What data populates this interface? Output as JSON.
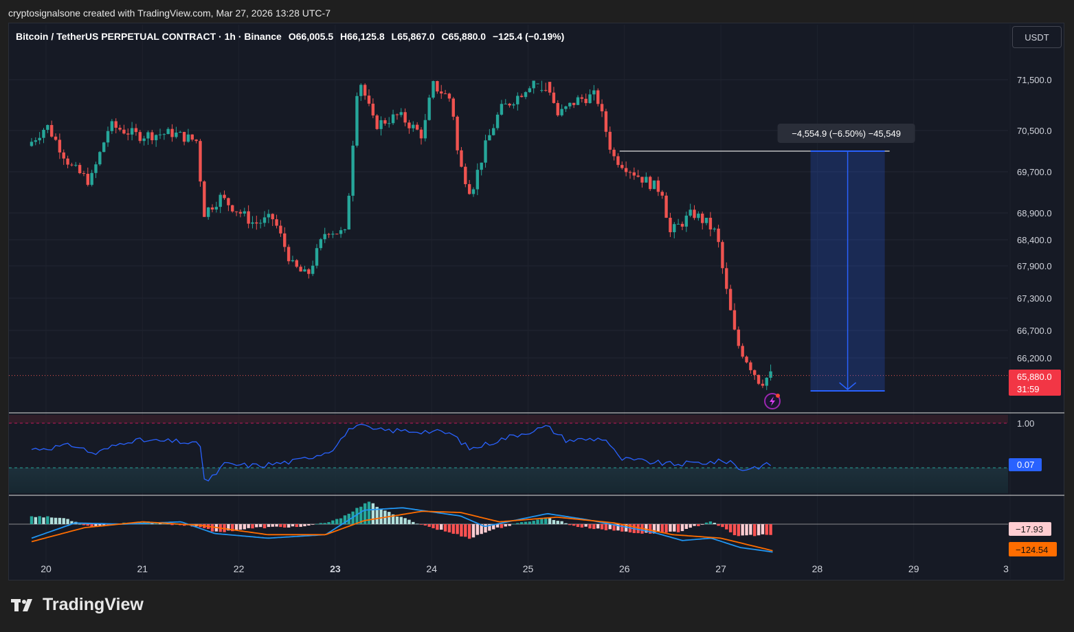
{
  "attribution": "cryptosignalsone created with TradingView.com, Mar 27, 2026 13:28 UTC-7",
  "legend": {
    "symbol": "Bitcoin / TetherUS PERPETUAL CONTRACT · 1h · Binance",
    "open": "O66,005.5",
    "high": "H66,125.8",
    "low": "L65,867.0",
    "close": "C65,880.0",
    "change": "−125.4 (−0.19%)"
  },
  "currency_button": "USDT",
  "brand": "TradingView",
  "colors": {
    "up": "#26a69a",
    "down": "#ef5350",
    "rsi": "#2962ff",
    "macd_signal": "#ff6d00",
    "accent": "#2962ff"
  },
  "chart_data": [
    {
      "type": "candlestick",
      "title": "Bitcoin / TetherUS PERPETUAL CONTRACT · 1h · Binance",
      "x_tick_labels": [
        "20",
        "21",
        "22",
        "23",
        "24",
        "25",
        "26",
        "27",
        "28",
        "29",
        "3"
      ],
      "y_tick_labels": [
        "71,500.0",
        "70,500.0",
        "69,700.0",
        "68,900.0",
        "68,400.0",
        "67,900.0",
        "67,300.0",
        "66,700.0",
        "66,200.0"
      ],
      "ylim": [
        65300,
        72000
      ],
      "last_price": "65,880.0",
      "countdown": "31:59",
      "price_path_keypoints": [
        {
          "day": 19.85,
          "price": 70200
        },
        {
          "day": 20.05,
          "price": 70600
        },
        {
          "day": 20.3,
          "price": 69800
        },
        {
          "day": 20.5,
          "price": 69500
        },
        {
          "day": 20.7,
          "price": 70600
        },
        {
          "day": 21.0,
          "price": 70400
        },
        {
          "day": 21.35,
          "price": 70450
        },
        {
          "day": 21.6,
          "price": 70300
        },
        {
          "day": 21.68,
          "price": 68900
        },
        {
          "day": 21.85,
          "price": 69200
        },
        {
          "day": 22.2,
          "price": 68700
        },
        {
          "day": 22.4,
          "price": 68800
        },
        {
          "day": 22.6,
          "price": 67900
        },
        {
          "day": 22.75,
          "price": 67700
        },
        {
          "day": 22.95,
          "price": 68600
        },
        {
          "day": 23.15,
          "price": 68500
        },
        {
          "day": 23.28,
          "price": 71600
        },
        {
          "day": 23.45,
          "price": 70600
        },
        {
          "day": 23.7,
          "price": 70800
        },
        {
          "day": 23.95,
          "price": 70400
        },
        {
          "day": 24.05,
          "price": 71400
        },
        {
          "day": 24.25,
          "price": 71100
        },
        {
          "day": 24.32,
          "price": 69900
        },
        {
          "day": 24.45,
          "price": 69300
        },
        {
          "day": 24.6,
          "price": 70200
        },
        {
          "day": 24.75,
          "price": 70900
        },
        {
          "day": 24.95,
          "price": 71200
        },
        {
          "day": 25.2,
          "price": 71700
        },
        {
          "day": 25.35,
          "price": 70800
        },
        {
          "day": 25.55,
          "price": 71100
        },
        {
          "day": 25.75,
          "price": 71200
        },
        {
          "day": 25.92,
          "price": 70000
        },
        {
          "day": 26.2,
          "price": 69600
        },
        {
          "day": 26.45,
          "price": 69300
        },
        {
          "day": 26.5,
          "price": 68500
        },
        {
          "day": 26.75,
          "price": 68900
        },
        {
          "day": 26.9,
          "price": 68700
        },
        {
          "day": 27.0,
          "price": 68500
        },
        {
          "day": 27.08,
          "price": 67600
        },
        {
          "day": 27.2,
          "price": 66500
        },
        {
          "day": 27.45,
          "price": 65750
        },
        {
          "day": 27.55,
          "price": 65880
        }
      ],
      "measure_annotation": {
        "label": "−4,554.9 (−6.50%) −45,549",
        "from_price": 70100,
        "to_price": 65600,
        "from_day": 27.93,
        "to_day": 28.7
      },
      "reference_line_price": 70100
    },
    {
      "type": "line",
      "series": [
        {
          "name": "",
          "value_label": "0.07"
        }
      ],
      "y_tick_labels": [
        "1.00"
      ],
      "rsi_path_keypoints": [
        {
          "day": 19.85,
          "v": 0.62
        },
        {
          "day": 20.3,
          "v": 0.68
        },
        {
          "day": 20.5,
          "v": 0.55
        },
        {
          "day": 20.85,
          "v": 0.75
        },
        {
          "day": 21.4,
          "v": 0.73
        },
        {
          "day": 21.6,
          "v": 0.68
        },
        {
          "day": 21.65,
          "v": 0.1
        },
        {
          "day": 21.85,
          "v": 0.4
        },
        {
          "day": 22.2,
          "v": 0.38
        },
        {
          "day": 22.6,
          "v": 0.45
        },
        {
          "day": 22.95,
          "v": 0.6
        },
        {
          "day": 23.2,
          "v": 0.98
        },
        {
          "day": 23.4,
          "v": 0.9
        },
        {
          "day": 24.0,
          "v": 0.88
        },
        {
          "day": 24.2,
          "v": 0.85
        },
        {
          "day": 24.4,
          "v": 0.62
        },
        {
          "day": 24.8,
          "v": 0.8
        },
        {
          "day": 25.2,
          "v": 0.95
        },
        {
          "day": 25.4,
          "v": 0.75
        },
        {
          "day": 25.8,
          "v": 0.78
        },
        {
          "day": 25.95,
          "v": 0.48
        },
        {
          "day": 26.5,
          "v": 0.4
        },
        {
          "day": 27.1,
          "v": 0.45
        },
        {
          "day": 27.2,
          "v": 0.32
        },
        {
          "day": 27.55,
          "v": 0.41
        }
      ]
    },
    {
      "type": "bar",
      "series": [
        {
          "name": "",
          "value_label": "−17.93"
        },
        {
          "name": "",
          "value_label": "−124.54"
        }
      ],
      "y_tick_labels": [],
      "histogram_keypoints": [
        {
          "day": 19.85,
          "v": 0.7
        },
        {
          "day": 20.2,
          "v": 0.5
        },
        {
          "day": 20.45,
          "v": -0.2
        },
        {
          "day": 21.0,
          "v": 0.2
        },
        {
          "day": 21.6,
          "v": -0.2
        },
        {
          "day": 21.75,
          "v": -0.7
        },
        {
          "day": 22.2,
          "v": -0.3
        },
        {
          "day": 22.7,
          "v": -0.2
        },
        {
          "day": 23.0,
          "v": 0.3
        },
        {
          "day": 23.35,
          "v": 1.9
        },
        {
          "day": 23.6,
          "v": 0.8
        },
        {
          "day": 24.0,
          "v": -0.3
        },
        {
          "day": 24.4,
          "v": -1.2
        },
        {
          "day": 24.65,
          "v": -0.4
        },
        {
          "day": 25.2,
          "v": 0.6
        },
        {
          "day": 25.5,
          "v": -0.2
        },
        {
          "day": 26.2,
          "v": -0.8
        },
        {
          "day": 26.6,
          "v": -0.6
        },
        {
          "day": 26.9,
          "v": 0.3
        },
        {
          "day": 27.15,
          "v": -1.0
        },
        {
          "day": 27.55,
          "v": -0.9
        }
      ],
      "macd_keypoints": [
        {
          "day": 19.85,
          "v": -1.2
        },
        {
          "day": 20.3,
          "v": 0.1
        },
        {
          "day": 20.8,
          "v": 0.0
        },
        {
          "day": 21.4,
          "v": 0.2
        },
        {
          "day": 21.75,
          "v": -0.8
        },
        {
          "day": 22.3,
          "v": -1.2
        },
        {
          "day": 22.9,
          "v": -0.9
        },
        {
          "day": 23.3,
          "v": 1.2
        },
        {
          "day": 23.7,
          "v": 1.4
        },
        {
          "day": 24.3,
          "v": 0.7
        },
        {
          "day": 24.55,
          "v": -0.2
        },
        {
          "day": 25.2,
          "v": 0.9
        },
        {
          "day": 25.6,
          "v": 0.4
        },
        {
          "day": 26.3,
          "v": -0.7
        },
        {
          "day": 26.6,
          "v": -1.4
        },
        {
          "day": 26.9,
          "v": -1.2
        },
        {
          "day": 27.2,
          "v": -2.0
        },
        {
          "day": 27.55,
          "v": -2.4
        }
      ],
      "signal_keypoints": [
        {
          "day": 19.85,
          "v": -1.5
        },
        {
          "day": 20.4,
          "v": -0.3
        },
        {
          "day": 21.0,
          "v": 0.2
        },
        {
          "day": 21.6,
          "v": -0.1
        },
        {
          "day": 22.3,
          "v": -0.9
        },
        {
          "day": 22.9,
          "v": -0.9
        },
        {
          "day": 23.3,
          "v": 0.3
        },
        {
          "day": 23.9,
          "v": 1.1
        },
        {
          "day": 24.3,
          "v": 1.0
        },
        {
          "day": 24.7,
          "v": 0.2
        },
        {
          "day": 25.3,
          "v": 0.6
        },
        {
          "day": 25.9,
          "v": 0.1
        },
        {
          "day": 26.5,
          "v": -0.9
        },
        {
          "day": 27.0,
          "v": -1.2
        },
        {
          "day": 27.55,
          "v": -2.3
        }
      ]
    }
  ]
}
